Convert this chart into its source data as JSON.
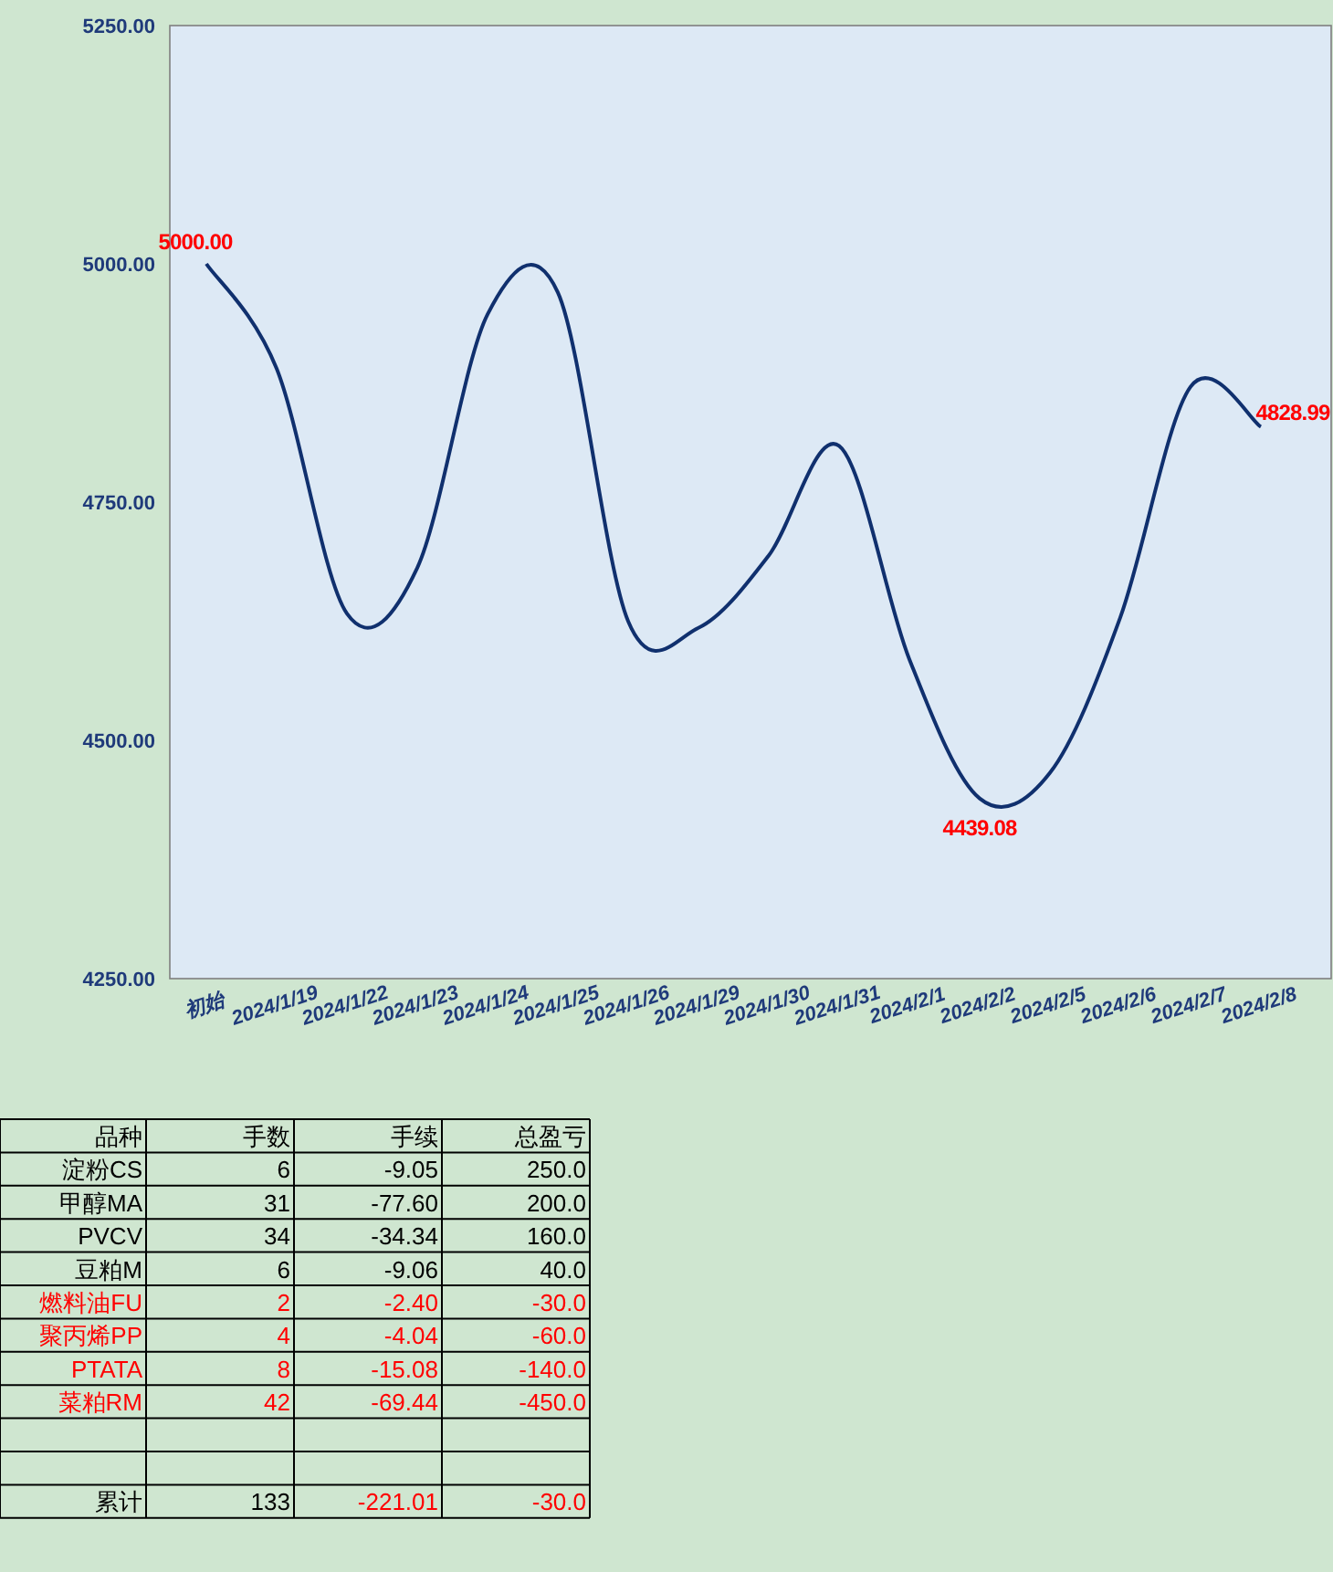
{
  "chart_data": [
    {
      "type": "line",
      "categories": [
        "初始",
        "2024/1/19",
        "2024/1/22",
        "2024/1/23",
        "2024/1/24",
        "2024/1/25",
        "2024/1/26",
        "2024/1/29",
        "2024/1/30",
        "2024/1/31",
        "2024/2/1",
        "2024/2/2",
        "2024/2/5",
        "2024/2/6",
        "2024/2/7",
        "2024/2/8"
      ],
      "values": [
        5000.0,
        4890,
        4633,
        4681,
        4947,
        4970,
        4625,
        4618,
        4694,
        4809,
        4585,
        4439.08,
        4466,
        4629,
        4871,
        4828.99
      ],
      "value_labels": [
        "5000.00",
        null,
        null,
        null,
        null,
        null,
        null,
        null,
        null,
        null,
        null,
        "4439.08",
        null,
        null,
        null,
        "4828.99"
      ],
      "color": "#10306e",
      "ylim": [
        4250,
        5250
      ],
      "yticks": [
        {
          "value": 4250,
          "label": "4250.00"
        },
        {
          "value": 4500,
          "label": "4500.00"
        },
        {
          "value": 4750,
          "label": "4750.00"
        },
        {
          "value": 5000,
          "label": "5000.00"
        },
        {
          "value": 5250,
          "label": "5250.00"
        }
      ],
      "grid": false,
      "legend": false,
      "marker": "none",
      "line_style": "solid"
    },
    {
      "type": "other",
      "annotations": [
        "品种",
        "手数",
        "手续",
        "总盈亏",
        "淀粉CS",
        "6",
        "-9.05",
        "250.0",
        "甲醇MA",
        "31",
        "-77.60",
        "200.0",
        "PVCV",
        "34",
        "-34.34",
        "160.0",
        "豆粕M",
        "6",
        "-9.06",
        "40.0",
        "燃料油FU",
        "2",
        "-2.40",
        "-30.0",
        "聚丙烯PP",
        "4",
        "-4.04",
        "-60.0",
        "PTATA",
        "8",
        "-15.08",
        "-140.0",
        "菜粕RM",
        "42",
        "-69.44",
        "-450.0",
        "累计",
        "133",
        "-221.01",
        "-30.0"
      ],
      "colors": [
        "#000000",
        "#000000",
        "#000000",
        "#000000",
        "#000000",
        "#000000",
        "#000000",
        "#000000",
        "#000000",
        "#000000",
        "#000000",
        "#000000",
        "#000000",
        "#000000",
        "#000000",
        "#000000",
        "#000000",
        "#000000",
        "#000000",
        "#000000",
        "#ff0000",
        "#ff0000",
        "#ff0000",
        "#ff0000",
        "#ff0000",
        "#ff0000",
        "#ff0000",
        "#ff0000",
        "#ff0000",
        "#ff0000",
        "#ff0000",
        "#ff0000",
        "#ff0000",
        "#ff0000",
        "#ff0000",
        "#ff0000",
        "#000000",
        "#000000",
        "#ff0000",
        "#ff0000"
      ]
    }
  ]
}
